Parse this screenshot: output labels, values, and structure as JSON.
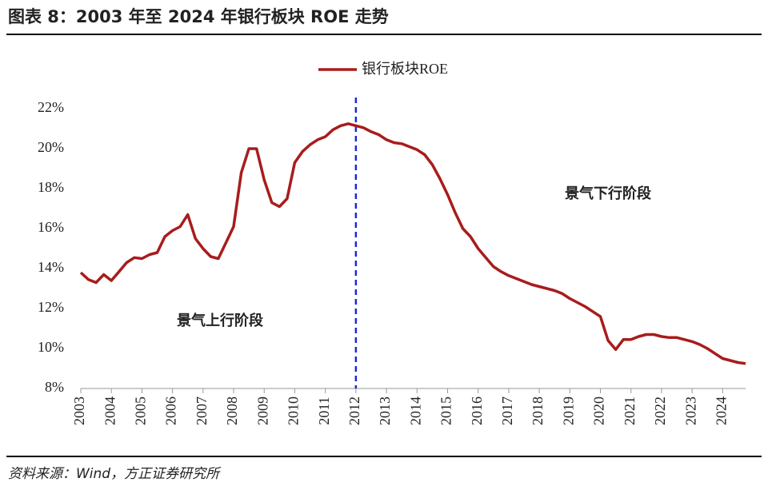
{
  "chart_data": {
    "type": "line",
    "title": "图表 8：2003 年至 2024 年银行板块 ROE 走势",
    "source": "资料来源：Wind，方正证券研究所",
    "annotations": [
      "景气上行阶段",
      "景气下行阶段"
    ],
    "vline": 2012,
    "vline_color": "#1a2bd6",
    "x": [
      2003,
      2003.25,
      2003.5,
      2003.75,
      2004,
      2004.25,
      2004.5,
      2004.75,
      2005,
      2005.25,
      2005.5,
      2005.75,
      2006,
      2006.25,
      2006.5,
      2006.75,
      2007,
      2007.25,
      2007.5,
      2007.75,
      2008,
      2008.25,
      2008.5,
      2008.75,
      2009,
      2009.25,
      2009.5,
      2009.75,
      2010,
      2010.25,
      2010.5,
      2010.75,
      2011,
      2011.25,
      2011.5,
      2011.75,
      2012,
      2012.25,
      2012.5,
      2012.75,
      2013,
      2013.25,
      2013.5,
      2013.75,
      2014,
      2014.25,
      2014.5,
      2014.75,
      2015,
      2015.25,
      2015.5,
      2015.75,
      2016,
      2016.25,
      2016.5,
      2016.75,
      2017,
      2017.25,
      2017.5,
      2017.75,
      2018,
      2018.25,
      2018.5,
      2018.75,
      2019,
      2019.25,
      2019.5,
      2019.75,
      2020,
      2020.25,
      2020.5,
      2020.75,
      2021,
      2021.25,
      2021.5,
      2021.75,
      2022,
      2022.25,
      2022.5,
      2022.75,
      2023,
      2023.25,
      2023.5,
      2023.75,
      2024,
      2024.25,
      2024.5,
      2024.75
    ],
    "series": [
      {
        "name": "银行板块ROE",
        "color": "#a81c1c",
        "values": [
          13.8,
          13.45,
          13.3,
          13.7,
          13.4,
          13.85,
          14.3,
          14.55,
          14.5,
          14.7,
          14.8,
          15.6,
          15.9,
          16.1,
          16.7,
          15.5,
          15.0,
          14.6,
          14.5,
          15.3,
          16.1,
          18.8,
          20.0,
          20.0,
          18.45,
          17.3,
          17.1,
          17.5,
          19.3,
          19.85,
          20.2,
          20.45,
          20.6,
          20.95,
          21.15,
          21.25,
          21.15,
          21.05,
          20.85,
          20.7,
          20.45,
          20.3,
          20.25,
          20.1,
          19.95,
          19.7,
          19.2,
          18.5,
          17.7,
          16.8,
          16.0,
          15.6,
          15.0,
          14.55,
          14.1,
          13.85,
          13.65,
          13.5,
          13.35,
          13.2,
          13.1,
          13.0,
          12.9,
          12.75,
          12.5,
          12.3,
          12.1,
          11.85,
          11.6,
          10.4,
          9.95,
          10.45,
          10.45,
          10.6,
          10.7,
          10.7,
          10.6,
          10.55,
          10.55,
          10.45,
          10.35,
          10.2,
          10.0,
          9.75,
          9.5,
          9.4,
          9.3,
          9.25
        ]
      }
    ],
    "xlim": [
      2003,
      2024.75
    ],
    "xticks": [
      2003,
      2004,
      2005,
      2006,
      2007,
      2008,
      2009,
      2010,
      2011,
      2012,
      2013,
      2014,
      2015,
      2016,
      2017,
      2018,
      2019,
      2020,
      2021,
      2022,
      2023,
      2024
    ],
    "ylim": [
      8,
      22
    ],
    "yticks": [
      {
        "value": 8,
        "label": "8%"
      },
      {
        "value": 10,
        "label": "10%"
      },
      {
        "value": 12,
        "label": "12%"
      },
      {
        "value": 14,
        "label": "14%"
      },
      {
        "value": 16,
        "label": "16%"
      },
      {
        "value": 18,
        "label": "18%"
      },
      {
        "value": 20,
        "label": "20%"
      },
      {
        "value": 22,
        "label": "22%"
      }
    ],
    "legend": "top"
  }
}
